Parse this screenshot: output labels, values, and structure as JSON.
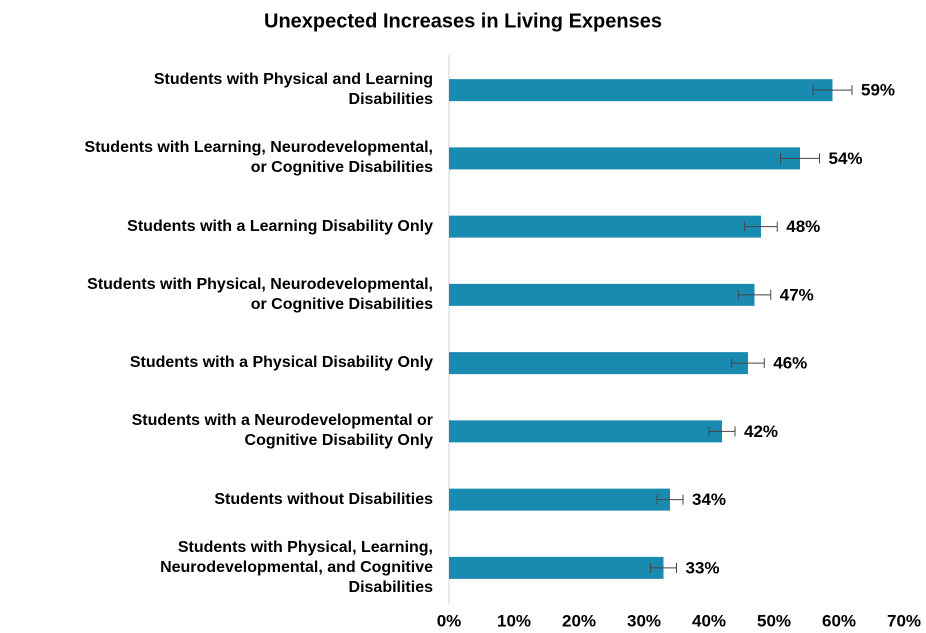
{
  "chart_data": {
    "type": "bar",
    "orientation": "horizontal",
    "title": "Unexpected Increases in Living Expenses",
    "categories": [
      "Students with Physical and Learning\nDisabilities",
      "Students with Learning, Neurodevelopmental,\nor Cognitive Disabilities",
      "Students with a Learning Disability Only",
      "Students with Physical, Neurodevelopmental,\nor Cognitive Disabilities",
      "Students with a Physical Disability Only",
      "Students with a Neurodevelopmental or\nCognitive Disability Only",
      "Students without Disabilities",
      "Students with Physical, Learning,\nNeurodevelopmental, and Cognitive\nDisabilities"
    ],
    "values": [
      59,
      54,
      48,
      47,
      46,
      42,
      34,
      33
    ],
    "errors": [
      3,
      3,
      2.5,
      2.5,
      2.5,
      2,
      2,
      2
    ],
    "value_labels": [
      "59%",
      "54%",
      "48%",
      "47%",
      "46%",
      "42%",
      "34%",
      "33%"
    ],
    "color": "#1a8bb0",
    "xlim": [
      0,
      70
    ],
    "xticks": [
      {
        "value": 0,
        "label": "0%"
      },
      {
        "value": 10,
        "label": "10%"
      },
      {
        "value": 20,
        "label": "20%"
      },
      {
        "value": 30,
        "label": "30%"
      },
      {
        "value": 40,
        "label": "40%"
      },
      {
        "value": 50,
        "label": "50%"
      },
      {
        "value": 60,
        "label": "60%"
      },
      {
        "value": 70,
        "label": "70%"
      }
    ],
    "grid": false
  }
}
